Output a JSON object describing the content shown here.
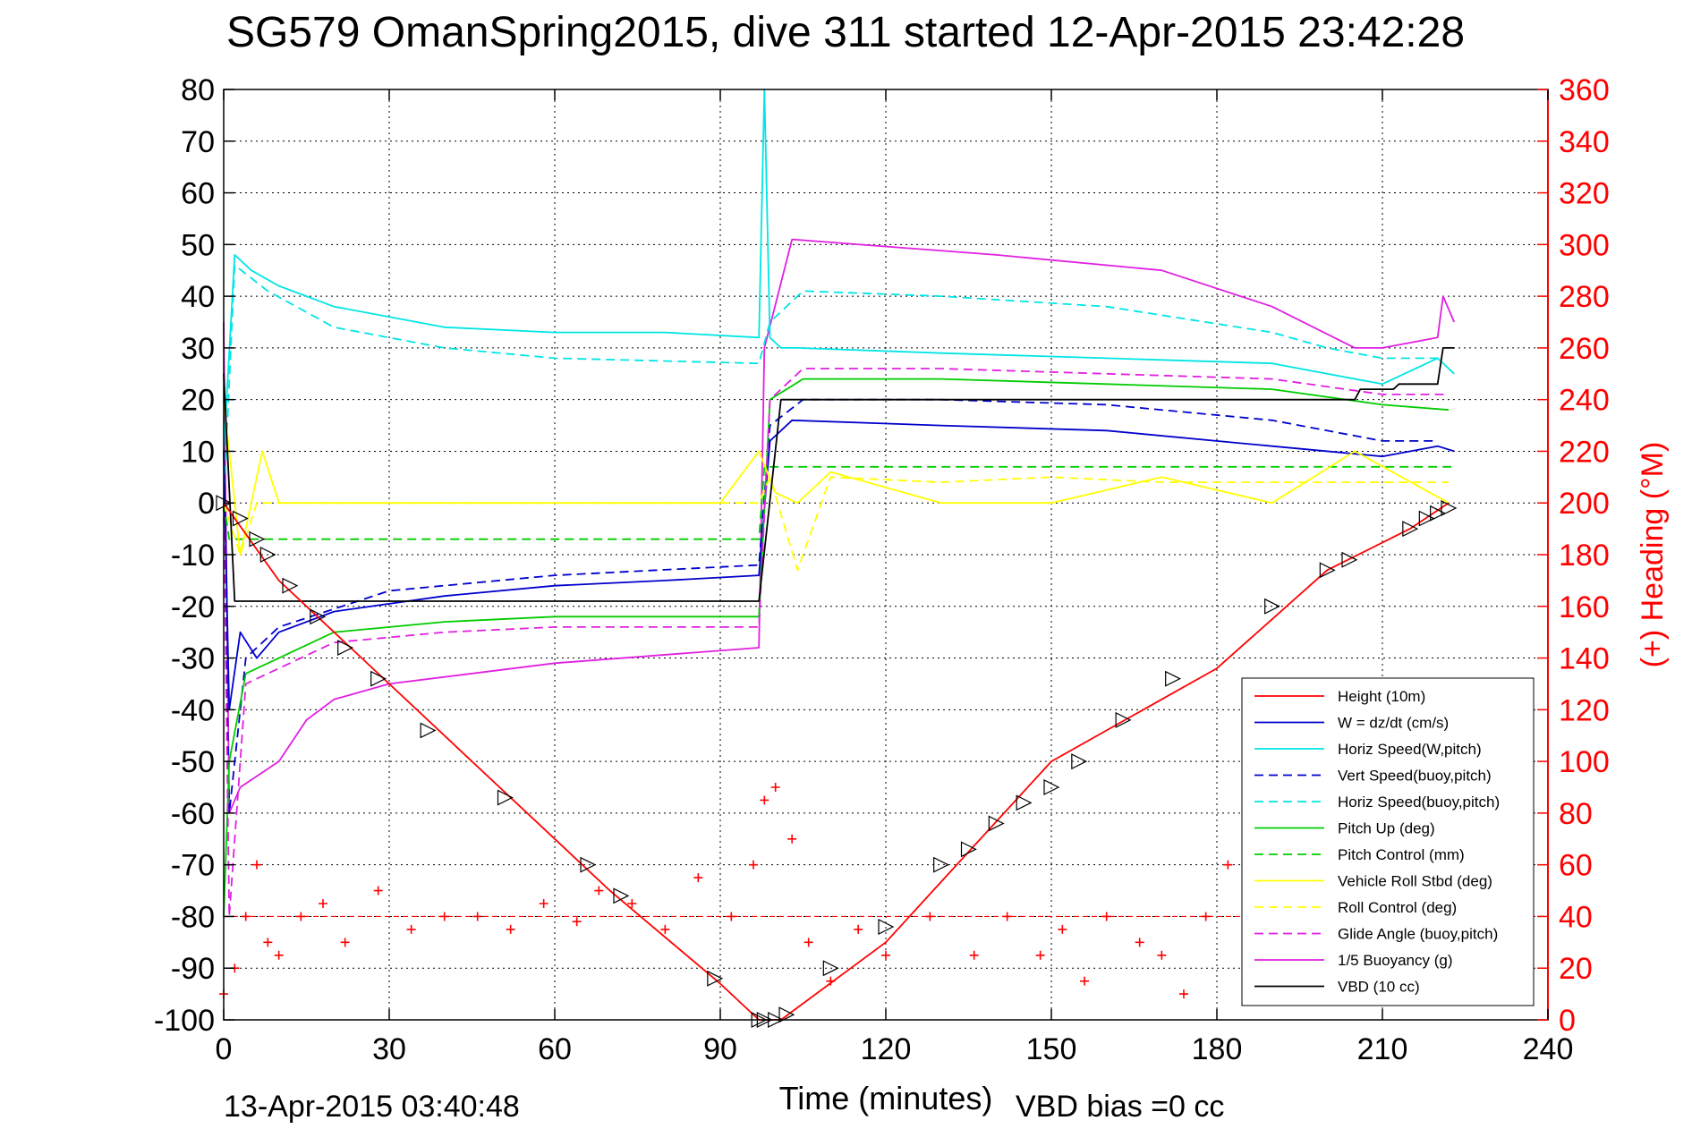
{
  "chart_data": {
    "type": "line",
    "title": "SG579 OmanSpring2015, dive 311 started 12-Apr-2015 23:42:28",
    "xlabel": "Time (minutes)",
    "ylabel_right": "(+) Heading (°M)",
    "footer_left": "13-Apr-2015 03:40:48",
    "footer_center": "VBD bias =0 cc",
    "xlim": [
      0,
      240
    ],
    "ylim_left": [
      -100,
      80
    ],
    "ylim_right": [
      0,
      360
    ],
    "xticks": [
      "0",
      "30",
      "60",
      "90",
      "120",
      "150",
      "180",
      "210",
      "240"
    ],
    "yticks_left": [
      "80",
      "70",
      "60",
      "50",
      "40",
      "30",
      "20",
      "10",
      "0",
      "-10",
      "-20",
      "-30",
      "-40",
      "-50",
      "-60",
      "-70",
      "-80",
      "-90",
      "-100"
    ],
    "yticks_right": [
      "360",
      "340",
      "320",
      "300",
      "280",
      "260",
      "240",
      "220",
      "200",
      "180",
      "160",
      "140",
      "120",
      "100",
      "80",
      "60",
      "40",
      "20",
      "0"
    ],
    "grid": true,
    "legend_position": "lower-right",
    "series": [
      {
        "name": "Height (10m)",
        "color": "#ff0000",
        "dash": "solid",
        "x": [
          0,
          10,
          30,
          50,
          70,
          90,
          97,
          101,
          120,
          150,
          180,
          200,
          215,
          222
        ],
        "y": [
          0,
          -15,
          -35,
          -55,
          -75,
          -93,
          -100,
          -100,
          -85,
          -50,
          -32,
          -13,
          -5,
          0
        ]
      },
      {
        "name": "W = dz/dt (cm/s)",
        "color": "#0000cc",
        "dash": "solid",
        "x": [
          0,
          1,
          3,
          6,
          10,
          20,
          40,
          60,
          80,
          97,
          99,
          103,
          130,
          160,
          190,
          210,
          220,
          223
        ],
        "y": [
          10,
          -40,
          -25,
          -30,
          -25,
          -21,
          -18,
          -16,
          -15,
          -14,
          12,
          16,
          15,
          14,
          11,
          9,
          11,
          10
        ]
      },
      {
        "name": "Horiz Speed(W,pitch)",
        "color": "#00e5e5",
        "dash": "solid",
        "x": [
          0,
          2,
          5,
          10,
          20,
          40,
          60,
          80,
          97,
          98,
          99,
          101,
          104,
          130,
          160,
          190,
          210,
          220,
          223
        ],
        "y": [
          10,
          48,
          45,
          42,
          38,
          34,
          33,
          33,
          32,
          80,
          32,
          30,
          30,
          29,
          28,
          27,
          23,
          28,
          25
        ]
      },
      {
        "name": "Vert Speed(buoy,pitch)",
        "color": "#0000cc",
        "dash": "dashed",
        "x": [
          0,
          1,
          4,
          10,
          30,
          60,
          97,
          99,
          105,
          130,
          160,
          190,
          210,
          220
        ],
        "y": [
          0,
          -60,
          -30,
          -24,
          -17,
          -14,
          -12,
          15,
          20,
          20,
          19,
          16,
          12,
          12
        ]
      },
      {
        "name": "Horiz Speed(buoy,pitch)",
        "color": "#00e5e5",
        "dash": "dashed",
        "x": [
          0,
          2,
          8,
          20,
          40,
          60,
          97,
          99,
          105,
          130,
          160,
          190,
          200,
          210,
          220
        ],
        "y": [
          0,
          46,
          41,
          34,
          30,
          28,
          27,
          35,
          41,
          40,
          38,
          33,
          30,
          28,
          28
        ]
      },
      {
        "name": "Pitch Up (deg)",
        "color": "#00cc00",
        "dash": "solid",
        "x": [
          0,
          1,
          4,
          10,
          20,
          40,
          60,
          97,
          99,
          105,
          130,
          160,
          190,
          210,
          222
        ],
        "y": [
          -80,
          -50,
          -33,
          -30,
          -25,
          -23,
          -22,
          -22,
          20,
          24,
          24,
          23,
          22,
          19,
          18
        ]
      },
      {
        "name": "Pitch Control (mm)",
        "color": "#00cc00",
        "dash": "dashed",
        "x": [
          0,
          1,
          97,
          98,
          223
        ],
        "y": [
          0,
          -7,
          -7,
          7,
          7
        ]
      },
      {
        "name": "Vehicle Roll Stbd (deg)",
        "color": "#ffff00",
        "dash": "solid",
        "x": [
          0,
          3,
          5,
          7,
          10,
          30,
          60,
          90,
          97,
          100,
          104,
          110,
          130,
          150,
          170,
          190,
          205,
          222
        ],
        "y": [
          20,
          -10,
          0,
          10,
          0,
          0,
          0,
          0,
          10,
          2,
          0,
          6,
          0,
          0,
          5,
          0,
          10,
          0
        ]
      },
      {
        "name": "Roll Control (deg)",
        "color": "#ffff00",
        "dash": "dashed",
        "x": [
          0,
          3,
          6,
          10,
          30,
          60,
          97,
          99,
          104,
          110,
          130,
          150,
          170,
          190,
          205,
          222
        ],
        "y": [
          0,
          -10,
          0,
          0,
          0,
          0,
          0,
          5,
          -13,
          5,
          4,
          5,
          4,
          4,
          4,
          4
        ]
      },
      {
        "name": "Glide Angle (buoy,pitch)",
        "color": "#e020e0",
        "dash": "dashed",
        "x": [
          0,
          1,
          4,
          10,
          20,
          40,
          60,
          97,
          99,
          105,
          130,
          160,
          190,
          210,
          222
        ],
        "y": [
          0,
          -80,
          -35,
          -32,
          -27,
          -25,
          -24,
          -24,
          20,
          26,
          26,
          25,
          24,
          21,
          21
        ]
      },
      {
        "name": "1/5 Buoyancy (g)",
        "color": "#e020e0",
        "dash": "solid",
        "x": [
          0,
          1,
          3,
          10,
          15,
          20,
          30,
          60,
          97,
          98,
          103,
          140,
          170,
          190,
          205,
          210,
          220,
          221,
          223
        ],
        "y": [
          35,
          -60,
          -55,
          -50,
          -42,
          -38,
          -35,
          -31,
          -28,
          30,
          51,
          48,
          45,
          38,
          30,
          30,
          32,
          40,
          35
        ]
      },
      {
        "name": "VBD (10 cc)",
        "color": "#000000",
        "dash": "solid",
        "x": [
          0,
          2,
          96,
          97,
          101,
          205,
          206,
          212,
          213,
          220,
          221,
          223
        ],
        "y": [
          25,
          -19,
          -19,
          -19,
          20,
          20,
          22,
          22,
          23,
          23,
          30,
          30
        ]
      }
    ],
    "heading": {
      "name": "Heading",
      "color": "#ff0000",
      "marker": "plus",
      "reference": 40,
      "x": [
        0,
        2,
        4,
        6,
        8,
        10,
        14,
        18,
        22,
        28,
        34,
        40,
        46,
        52,
        58,
        64,
        68,
        74,
        80,
        86,
        92,
        96,
        98,
        100,
        103,
        106,
        110,
        115,
        120,
        128,
        136,
        142,
        148,
        152,
        156,
        160,
        166,
        170,
        174,
        178,
        182,
        190,
        198,
        206,
        212,
        218,
        223
      ],
      "y": [
        10,
        20,
        40,
        60,
        30,
        25,
        40,
        45,
        30,
        50,
        35,
        40,
        40,
        35,
        45,
        38,
        50,
        45,
        35,
        55,
        40,
        60,
        85,
        90,
        70,
        30,
        15,
        35,
        25,
        40,
        25,
        40,
        25,
        35,
        15,
        40,
        30,
        25,
        10,
        40,
        60,
        35,
        30,
        20,
        40,
        45,
        50
      ]
    },
    "depth_markers": {
      "name": "Height markers",
      "color": "#000000",
      "marker": "triangle",
      "x": [
        0,
        3,
        6,
        8,
        12,
        17,
        22,
        28,
        37,
        51,
        66,
        72,
        89,
        97,
        98,
        100,
        102,
        110,
        120,
        130,
        135,
        140,
        145,
        150,
        155,
        163,
        172,
        190,
        200,
        204,
        215,
        218,
        220,
        222
      ],
      "y": [
        0,
        -3,
        -7,
        -10,
        -16,
        -22,
        -28,
        -34,
        -44,
        -57,
        -70,
        -76,
        -92,
        -100,
        -100,
        -100,
        -99,
        -90,
        -82,
        -70,
        -67,
        -62,
        -58,
        -55,
        -50,
        -42,
        -34,
        -20,
        -13,
        -11,
        -5,
        -3,
        -2,
        -1
      ]
    },
    "legend": [
      {
        "label": "Height (10m)",
        "color": "#ff0000",
        "dash": "solid"
      },
      {
        "label": "W = dz/dt (cm/s)",
        "color": "#0000cc",
        "dash": "solid"
      },
      {
        "label": "Horiz Speed(W,pitch)",
        "color": "#00e5e5",
        "dash": "solid"
      },
      {
        "label": "Vert Speed(buoy,pitch)",
        "color": "#0000cc",
        "dash": "dashed"
      },
      {
        "label": "Horiz Speed(buoy,pitch)",
        "color": "#00e5e5",
        "dash": "dashed"
      },
      {
        "label": "Pitch Up (deg)",
        "color": "#00cc00",
        "dash": "solid"
      },
      {
        "label": "Pitch Control (mm)",
        "color": "#00cc00",
        "dash": "dashed"
      },
      {
        "label": "Vehicle Roll Stbd (deg)",
        "color": "#ffff00",
        "dash": "solid"
      },
      {
        "label": "Roll Control (deg)",
        "color": "#ffff00",
        "dash": "dashed"
      },
      {
        "label": "Glide Angle (buoy,pitch)",
        "color": "#e020e0",
        "dash": "dashed"
      },
      {
        "label": "1/5 Buoyancy (g)",
        "color": "#e020e0",
        "dash": "solid"
      },
      {
        "label": "VBD (10 cc)",
        "color": "#000000",
        "dash": "solid"
      }
    ]
  }
}
